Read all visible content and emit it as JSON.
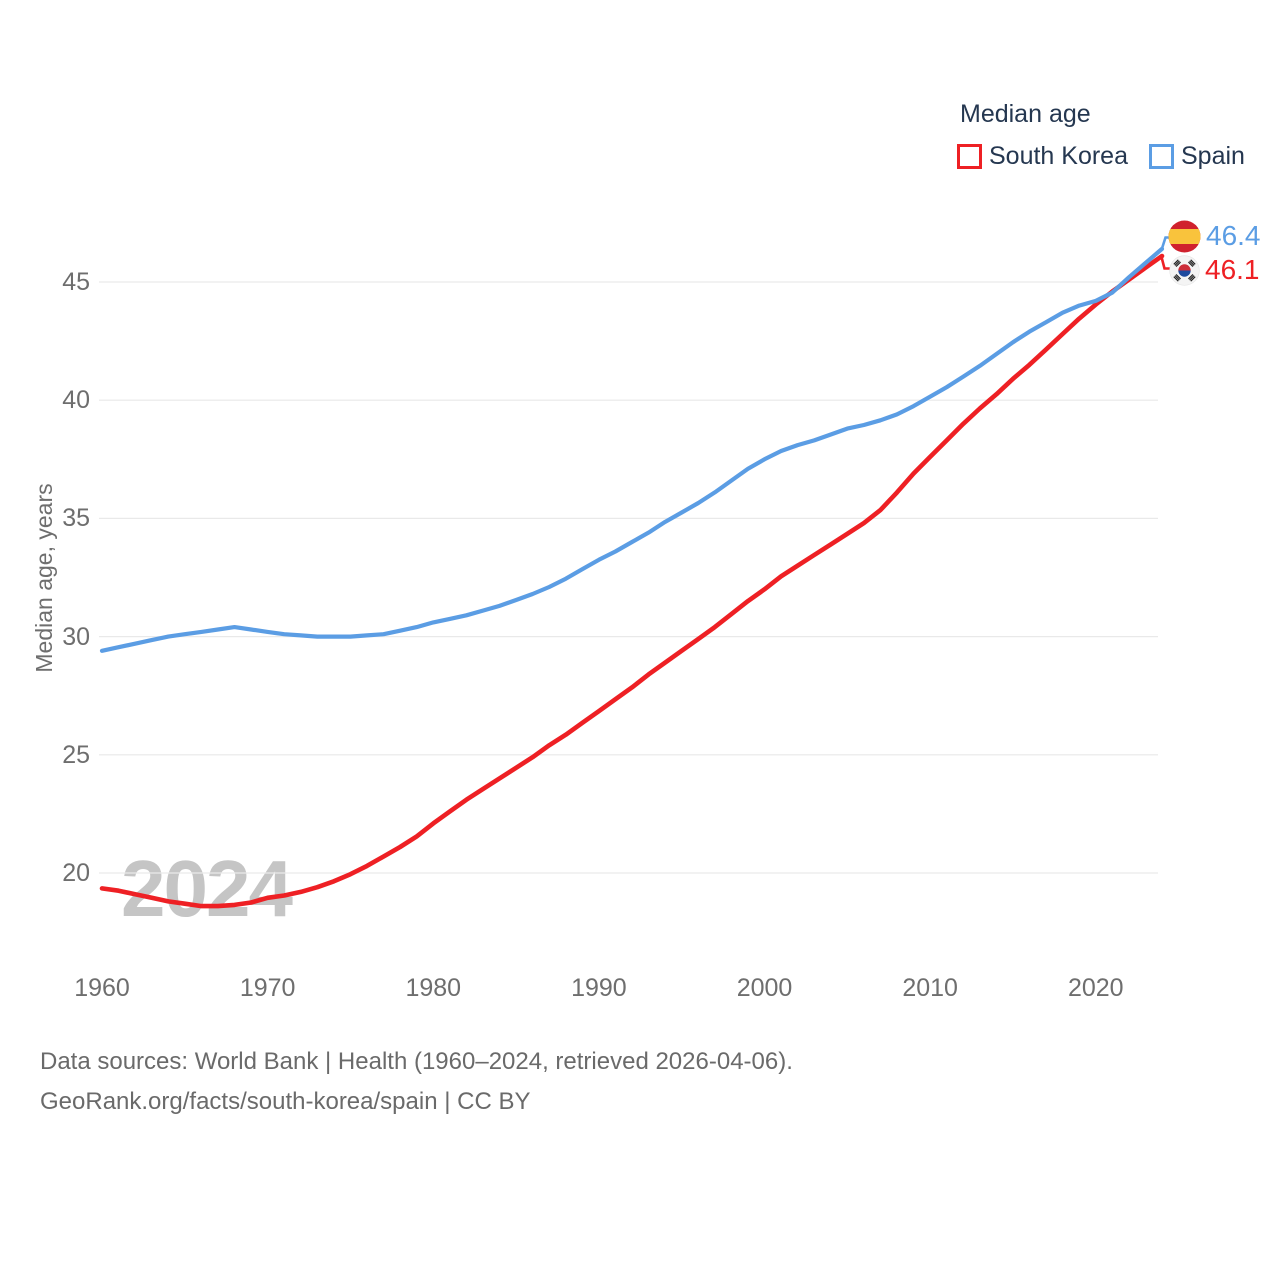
{
  "legend": {
    "title": "Median age",
    "items": [
      {
        "label": "South Korea",
        "color": "#ee2024"
      },
      {
        "label": "Spain",
        "color": "#5b9de4"
      }
    ]
  },
  "end_labels": [
    {
      "country": "Spain",
      "value": "46.4",
      "color": "#5b9de4",
      "icon": "spain-flag-icon"
    },
    {
      "country": "South Korea",
      "value": "46.1",
      "color": "#ee2024",
      "icon": "south-korea-flag-icon"
    }
  ],
  "flags": {
    "spain": {
      "red": "#d0212d",
      "yellow": "#f9c33c"
    },
    "south_korea": {
      "red": "#cd2e3a",
      "blue": "#1e4a9e",
      "black": "#222222",
      "bg": "#f4f4f4"
    }
  },
  "y_axis": {
    "label": "Median age, years",
    "ticks": [
      45,
      40,
      35,
      30,
      25,
      20
    ]
  },
  "x_axis": {
    "ticks": [
      1960,
      1970,
      1980,
      1990,
      2000,
      2010,
      2020
    ]
  },
  "watermark": "2024",
  "footer": {
    "line1": "Data sources: World Bank | Health (1960–2024, retrieved 2026-04-06).",
    "line2": "GeoRank.org/facts/south-korea/spain | CC BY"
  },
  "chart_data": {
    "type": "line",
    "title": "Median age",
    "ylabel": "Median age, years",
    "xlim": [
      1960,
      2024
    ],
    "ylim": [
      17.5,
      48
    ],
    "grid": "horizontal",
    "legend_position": "top-right",
    "x": [
      1960,
      1961,
      1962,
      1963,
      1964,
      1965,
      1966,
      1967,
      1968,
      1969,
      1970,
      1971,
      1972,
      1973,
      1974,
      1975,
      1976,
      1977,
      1978,
      1979,
      1980,
      1981,
      1982,
      1983,
      1984,
      1985,
      1986,
      1987,
      1988,
      1989,
      1990,
      1991,
      1992,
      1993,
      1994,
      1995,
      1996,
      1997,
      1998,
      1999,
      2000,
      2001,
      2002,
      2003,
      2004,
      2005,
      2006,
      2007,
      2008,
      2009,
      2010,
      2011,
      2012,
      2013,
      2014,
      2015,
      2016,
      2017,
      2018,
      2019,
      2020,
      2021,
      2022,
      2023,
      2024
    ],
    "series": [
      {
        "name": "South Korea",
        "color": "#ee2024",
        "end_label": 46.1,
        "values": [
          19.35,
          19.25,
          19.1,
          18.95,
          18.8,
          18.7,
          18.6,
          18.6,
          18.65,
          18.75,
          18.95,
          19.05,
          19.2,
          19.4,
          19.65,
          19.95,
          20.3,
          20.7,
          21.1,
          21.55,
          22.1,
          22.6,
          23.1,
          23.55,
          24.0,
          24.45,
          24.9,
          25.4,
          25.85,
          26.35,
          26.85,
          27.35,
          27.85,
          28.4,
          28.9,
          29.4,
          29.9,
          30.4,
          30.95,
          31.5,
          32.0,
          32.55,
          33.0,
          33.45,
          33.9,
          34.35,
          34.8,
          35.35,
          36.1,
          36.9,
          37.6,
          38.3,
          39.0,
          39.65,
          40.25,
          40.9,
          41.5,
          42.15,
          42.8,
          43.45,
          44.05,
          44.6,
          45.1,
          45.6,
          46.1
        ]
      },
      {
        "name": "Spain",
        "color": "#5b9de4",
        "end_label": 46.4,
        "values": [
          29.4,
          29.55,
          29.7,
          29.85,
          30.0,
          30.1,
          30.2,
          30.3,
          30.4,
          30.3,
          30.2,
          30.1,
          30.05,
          30.0,
          30.0,
          30.0,
          30.05,
          30.1,
          30.25,
          30.4,
          30.6,
          30.75,
          30.9,
          31.1,
          31.3,
          31.55,
          31.8,
          32.1,
          32.45,
          32.85,
          33.25,
          33.6,
          34.0,
          34.4,
          34.85,
          35.25,
          35.65,
          36.1,
          36.6,
          37.1,
          37.5,
          37.85,
          38.1,
          38.3,
          38.55,
          38.8,
          38.95,
          39.15,
          39.4,
          39.75,
          40.15,
          40.55,
          41.0,
          41.45,
          41.95,
          42.45,
          42.9,
          43.3,
          43.7,
          44.0,
          44.2,
          44.55,
          45.2,
          45.8,
          46.4
        ]
      }
    ]
  }
}
